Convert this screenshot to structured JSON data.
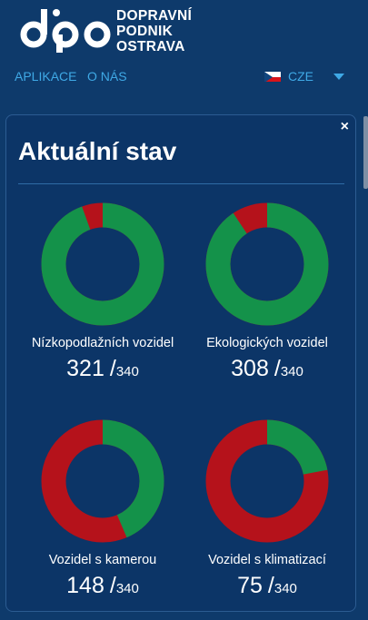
{
  "header": {
    "brand_lines": [
      "DOPRAVNÍ",
      "PODNIK",
      "OSTRAVA"
    ]
  },
  "nav": {
    "items": [
      "APLIKACE",
      "O NÁS"
    ],
    "language": "CZE"
  },
  "panel": {
    "title": "Aktuální stav",
    "close_label": "×",
    "colors": {
      "good": "#14924a",
      "bad": "#b5121b"
    },
    "stats": [
      {
        "label": "Nízkopodlažních vozidel",
        "value": 321,
        "total": 340,
        "value_text": "321",
        "total_text": "340"
      },
      {
        "label": "Ekologických vozidel",
        "value": 308,
        "total": 340,
        "value_text": "308",
        "total_text": "340"
      },
      {
        "label": "Vozidel s kamerou",
        "value": 148,
        "total": 340,
        "value_text": "148",
        "total_text": "340"
      },
      {
        "label": "Vozidel s klimatizací",
        "value": 75,
        "total": 340,
        "value_text": "75",
        "total_text": "340"
      }
    ]
  }
}
